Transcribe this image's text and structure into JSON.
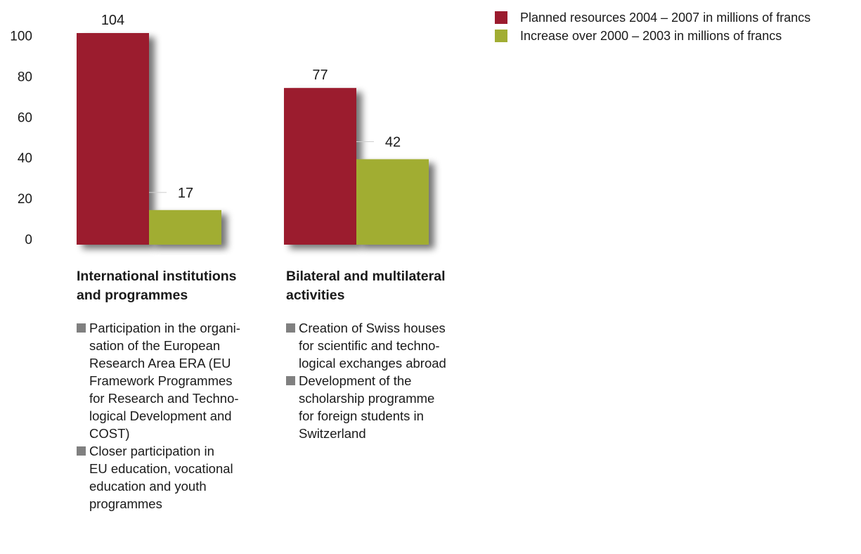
{
  "chart_data": {
    "type": "bar",
    "categories": [
      "International institutions\nand programmes",
      "Bilateral and multilateral\nactivities"
    ],
    "series": [
      {
        "name": "Planned resources 2004 – 2007 in millions of francs",
        "values": [
          104,
          77
        ],
        "color": "#9b1b2e"
      },
      {
        "name": "Increase over 2000 – 2003 in millions of francs",
        "values": [
          17,
          42
        ],
        "color": "#a1ad33"
      }
    ],
    "yticks": [
      "0",
      "20",
      "40",
      "60",
      "80",
      "100"
    ],
    "ylim": [
      0,
      104
    ],
    "xlabel": "",
    "ylabel": "",
    "grid": false,
    "legend_position": "top-right"
  },
  "legend": [
    {
      "label": "Planned resources 2004 – 2007 in millions of francs",
      "color": "#9b1b2e"
    },
    {
      "label": "Increase over 2000 – 2003 in millions of francs",
      "color": "#a1ad33"
    }
  ],
  "groups": [
    {
      "title": "International institutions\nand programmes",
      "bullets": [
        "Participation in the organi-\nsation of the European\nResearch Area ERA (EU\nFramework Programmes\nfor Research and Techno-\nlogical Development and\nCOST)",
        "Closer participation in\nEU education, vocational\neducation and youth\nprogrammes"
      ]
    },
    {
      "title": "Bilateral and multilateral\nactivities",
      "bullets": [
        "Creation of Swiss houses\nfor scientific and techno-\nlogical exchanges abroad",
        "Development of the\nscholarship programme\nfor foreign students in\nSwitzerland"
      ]
    }
  ]
}
